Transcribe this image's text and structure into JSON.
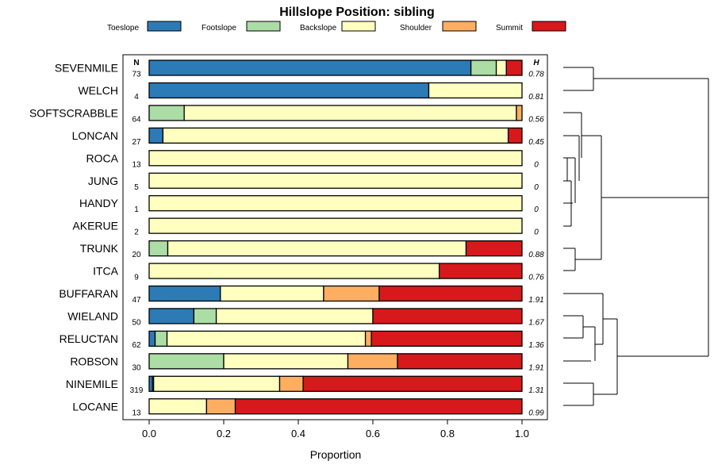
{
  "chart_data": {
    "type": "bar",
    "orientation": "horizontal",
    "stacked": true,
    "title": "Hillslope Position: sibling",
    "xlabel": "Proportion",
    "ylabel": "",
    "xlim": [
      0,
      1
    ],
    "x_ticks": [
      "0.0",
      "0.2",
      "0.4",
      "0.6",
      "0.8",
      "1.0"
    ],
    "n_header": "N",
    "h_header": "H",
    "legend_position": "top",
    "series": [
      {
        "name": "Toeslope",
        "color": "#2C7BB6"
      },
      {
        "name": "Footslope",
        "color": "#ABDDA4"
      },
      {
        "name": "Backslope",
        "color": "#FFFFBF"
      },
      {
        "name": "Shoulder",
        "color": "#FDAE61"
      },
      {
        "name": "Summit",
        "color": "#D7191C"
      }
    ],
    "categories": [
      "SEVENMILE",
      "WELCH",
      "SOFTSCRABBLE",
      "LONCAN",
      "ROCA",
      "JUNG",
      "HANDY",
      "AKERUE",
      "TRUNK",
      "ITCA",
      "BUFFARAN",
      "WIELAND",
      "RELUCTAN",
      "ROBSON",
      "NINEMILE",
      "LOCANE"
    ],
    "n_values": [
      "73",
      "4",
      "64",
      "27",
      "13",
      "5",
      "1",
      "2",
      "20",
      "9",
      "47",
      "50",
      "62",
      "30",
      "319",
      "13"
    ],
    "h_values": [
      "0.78",
      "0.81",
      "0.56",
      "0.45",
      "0",
      "0",
      "0",
      "0",
      "0.88",
      "0.76",
      "1.91",
      "1.67",
      "1.36",
      "1.91",
      "1.31",
      "0.99"
    ],
    "values": [
      [
        0.863,
        0.068,
        0.027,
        0.0,
        0.042
      ],
      [
        0.75,
        0.0,
        0.25,
        0.0,
        0.0
      ],
      [
        0.0,
        0.094,
        0.891,
        0.015,
        0.0
      ],
      [
        0.037,
        0.0,
        0.926,
        0.0,
        0.037
      ],
      [
        0,
        0,
        1,
        0,
        0
      ],
      [
        0,
        0,
        1,
        0,
        0
      ],
      [
        0,
        0,
        1,
        0,
        0
      ],
      [
        0,
        0,
        1,
        0,
        0
      ],
      [
        0.0,
        0.05,
        0.8,
        0.0,
        0.15
      ],
      [
        0.0,
        0.0,
        0.778,
        0.0,
        0.222
      ],
      [
        0.191,
        0.0,
        0.277,
        0.149,
        0.383
      ],
      [
        0.12,
        0.06,
        0.42,
        0.0,
        0.4
      ],
      [
        0.016,
        0.032,
        0.532,
        0.016,
        0.404
      ],
      [
        0.0,
        0.2,
        0.333,
        0.133,
        0.334
      ],
      [
        0.009,
        0.003,
        0.338,
        0.063,
        0.587
      ],
      [
        0.0,
        0.0,
        0.154,
        0.077,
        0.769
      ]
    ]
  }
}
